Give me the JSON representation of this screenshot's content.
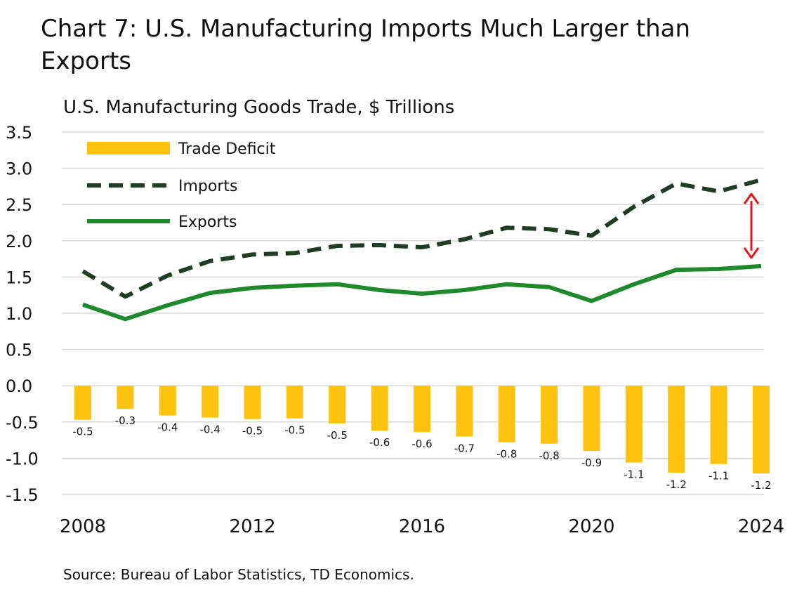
{
  "header": {
    "title": "Chart 7:  U.S. Manufacturing Imports Much Larger than Exports",
    "subtitle": "U.S. Manufacturing Goods Trade, $ Trillions",
    "source": "Source: Bureau of Labor Statistics, TD Economics."
  },
  "colors": {
    "deficit": "#FFC20E",
    "imports": "#1E3D24",
    "exports": "#1F8A2C",
    "arrow": "#E8141B",
    "grid": "#D9D9D9"
  },
  "chart_data": {
    "type": "bar+line",
    "title": "U.S. Manufacturing Goods Trade, $ Trillions",
    "ylim": [
      -1.5,
      3.5
    ],
    "yticks": [
      "3.5",
      "3.0",
      "2.5",
      "2.0",
      "1.5",
      "1.0",
      "0.5",
      "0.0",
      "-0.5",
      "-1.0",
      "-1.5"
    ],
    "ytick_values": [
      3.5,
      3.0,
      2.5,
      2.0,
      1.5,
      1.0,
      0.5,
      0.0,
      -0.5,
      -1.0,
      -1.5
    ],
    "x": [
      2008,
      2009,
      2010,
      2011,
      2012,
      2013,
      2014,
      2015,
      2016,
      2017,
      2018,
      2019,
      2020,
      2021,
      2022,
      2023,
      2024
    ],
    "xtick_labels": [
      "2008",
      "2012",
      "2016",
      "2020",
      "2024"
    ],
    "xtick_values": [
      2008,
      2012,
      2016,
      2020,
      2024
    ],
    "grid": true,
    "legend_position": "top-left",
    "series": [
      {
        "name": "Trade Deficit",
        "type": "bar",
        "values": [
          -0.47,
          -0.32,
          -0.41,
          -0.44,
          -0.46,
          -0.45,
          -0.52,
          -0.62,
          -0.64,
          -0.7,
          -0.78,
          -0.8,
          -0.9,
          -1.06,
          -1.2,
          -1.08,
          -1.21
        ],
        "labels": [
          "-0.5",
          "-0.3",
          "-0.4",
          "-0.4",
          "-0.5",
          "-0.5",
          "-0.5",
          "-0.6",
          "-0.6",
          "-0.7",
          "-0.8",
          "-0.8",
          "-0.9",
          "-1.1",
          "-1.2",
          "-1.1",
          "-1.2"
        ]
      },
      {
        "name": "Imports",
        "type": "line",
        "style": "dashed",
        "values": [
          1.58,
          1.23,
          1.52,
          1.72,
          1.81,
          1.83,
          1.93,
          1.94,
          1.91,
          2.02,
          2.18,
          2.16,
          2.07,
          2.47,
          2.79,
          2.68,
          2.84
        ]
      },
      {
        "name": "Exports",
        "type": "line",
        "style": "solid",
        "values": [
          1.12,
          0.92,
          1.11,
          1.28,
          1.35,
          1.38,
          1.4,
          1.32,
          1.27,
          1.32,
          1.4,
          1.36,
          1.17,
          1.4,
          1.6,
          1.61,
          1.65
        ]
      }
    ],
    "annotation": {
      "type": "double-arrow",
      "x": 2024,
      "from": 1.65,
      "to": 2.84
    }
  }
}
